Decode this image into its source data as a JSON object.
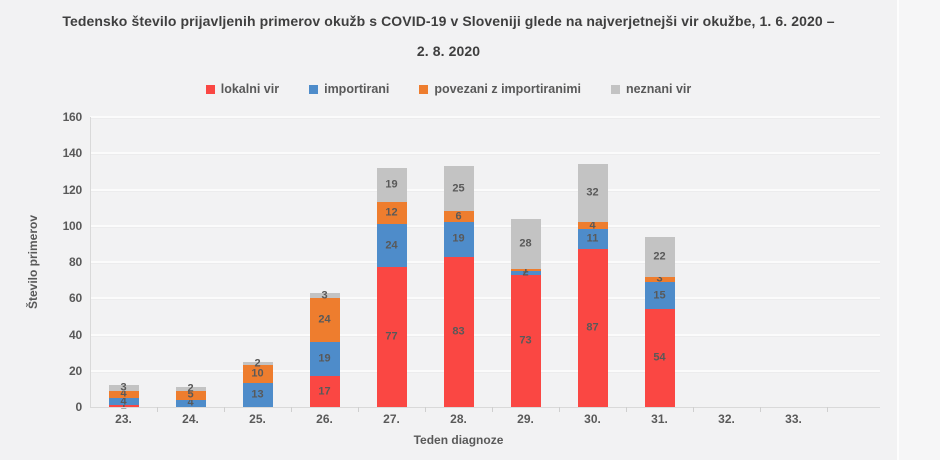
{
  "title_lines": [
    "Tedensko število prijavljenih primerov okužb s COVID-19 v Sloveniji glede na najverjetnejši vir okužbe, 1. 6. 2020 –",
    "2. 8. 2020"
  ],
  "chart_data": {
    "type": "bar",
    "stacked": true,
    "title": "Tedensko število prijavljenih primerov okužb s COVID-19 v Sloveniji glede na najverjetnejši vir okužbe, 1. 6. 2020 – 2. 8. 2020",
    "categories": [
      "23.",
      "24.",
      "25.",
      "26.",
      "27.",
      "28.",
      "29.",
      "30.",
      "31.",
      "32.",
      "33."
    ],
    "xlabel": "Teden diagnoze",
    "ylabel": "Število primerov",
    "ylim": [
      0,
      160
    ],
    "ytick_step": 20,
    "yticks": [
      0,
      20,
      40,
      60,
      80,
      100,
      120,
      140,
      160
    ],
    "grid": true,
    "legend_position": "top",
    "series": [
      {
        "name": "lokalni vir",
        "color": "#fa4743",
        "values": [
          1,
          0,
          0,
          17,
          77,
          83,
          73,
          87,
          54,
          0,
          0
        ]
      },
      {
        "name": "importirani",
        "color": "#4e8cca",
        "values": [
          4,
          4,
          13,
          19,
          24,
          19,
          2,
          11,
          15,
          0,
          0
        ]
      },
      {
        "name": "povezani z importiranimi",
        "color": "#ee7d2e",
        "values": [
          4,
          5,
          10,
          24,
          12,
          6,
          1,
          4,
          3,
          0,
          0
        ]
      },
      {
        "name": "neznani vir",
        "color": "#c3c3c3",
        "values": [
          3,
          2,
          2,
          3,
          19,
          25,
          28,
          32,
          22,
          0,
          0
        ]
      }
    ],
    "totals": [
      12,
      11,
      25,
      63,
      132,
      133,
      104,
      134,
      94,
      0,
      0
    ]
  },
  "colors": {
    "background": "#f2f2f3",
    "gridline": "#fbfbfb",
    "axis_line": "#d9d9d9",
    "text": "#595959",
    "title_text": "#3f3f3f"
  }
}
